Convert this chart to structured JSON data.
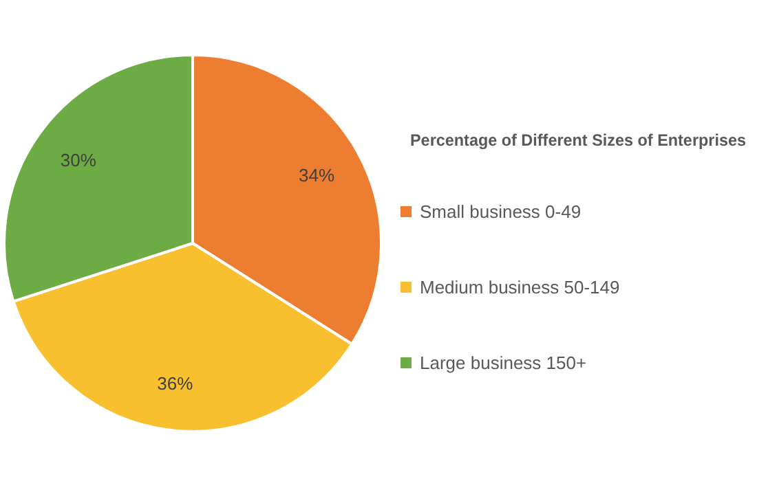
{
  "chart_data": {
    "type": "pie",
    "title": "Percentage of Different Sizes of Enterprises",
    "categories": [
      "Small business 0-49",
      "Medium business 50-149",
      "Large business 150+"
    ],
    "values": [
      34,
      36,
      30
    ],
    "colors": [
      "#ed7d31",
      "#f8bf2f",
      "#6dab45"
    ],
    "value_labels": [
      "34%",
      "36%",
      "30%"
    ],
    "legend": "right"
  }
}
